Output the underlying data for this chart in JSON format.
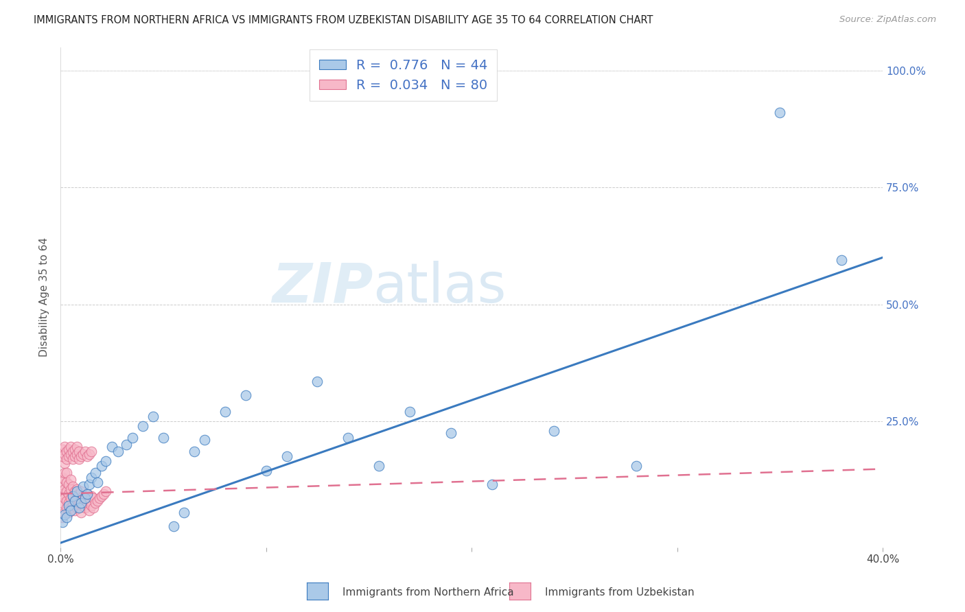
{
  "title": "IMMIGRANTS FROM NORTHERN AFRICA VS IMMIGRANTS FROM UZBEKISTAN DISABILITY AGE 35 TO 64 CORRELATION CHART",
  "source": "Source: ZipAtlas.com",
  "ylabel": "Disability Age 35 to 64",
  "xlim": [
    0.0,
    0.4
  ],
  "ylim": [
    -0.02,
    1.05
  ],
  "blue_R": 0.776,
  "blue_N": 44,
  "pink_R": 0.034,
  "pink_N": 80,
  "blue_color": "#aac9e8",
  "pink_color": "#f7b8c8",
  "blue_line_color": "#3a7abf",
  "pink_line_color": "#e07090",
  "watermark_zip": "ZIP",
  "watermark_atlas": "atlas",
  "legend_label_blue": "Immigrants from Northern Africa",
  "legend_label_pink": "Immigrants from Uzbekistan",
  "blue_trend_x0": 0.0,
  "blue_trend_y0": -0.01,
  "blue_trend_x1": 0.4,
  "blue_trend_y1": 0.6,
  "pink_trend_x0": 0.0,
  "pink_trend_y0": 0.095,
  "pink_trend_x1": 0.4,
  "pink_trend_y1": 0.148,
  "blue_points_x": [
    0.001,
    0.002,
    0.003,
    0.004,
    0.005,
    0.006,
    0.007,
    0.008,
    0.009,
    0.01,
    0.011,
    0.012,
    0.013,
    0.014,
    0.015,
    0.017,
    0.018,
    0.02,
    0.022,
    0.025,
    0.028,
    0.032,
    0.035,
    0.04,
    0.045,
    0.05,
    0.055,
    0.06,
    0.065,
    0.07,
    0.08,
    0.09,
    0.1,
    0.11,
    0.125,
    0.14,
    0.155,
    0.17,
    0.19,
    0.21,
    0.24,
    0.28,
    0.35,
    0.38
  ],
  "blue_points_y": [
    0.035,
    0.05,
    0.045,
    0.07,
    0.06,
    0.09,
    0.08,
    0.1,
    0.065,
    0.075,
    0.11,
    0.085,
    0.095,
    0.115,
    0.13,
    0.14,
    0.12,
    0.155,
    0.165,
    0.195,
    0.185,
    0.2,
    0.215,
    0.24,
    0.26,
    0.215,
    0.025,
    0.055,
    0.185,
    0.21,
    0.27,
    0.305,
    0.145,
    0.175,
    0.335,
    0.215,
    0.155,
    0.27,
    0.225,
    0.115,
    0.23,
    0.155,
    0.91,
    0.595
  ],
  "pink_points_x": [
    0.001,
    0.001,
    0.001,
    0.001,
    0.001,
    0.002,
    0.002,
    0.002,
    0.002,
    0.002,
    0.002,
    0.003,
    0.003,
    0.003,
    0.003,
    0.003,
    0.004,
    0.004,
    0.004,
    0.004,
    0.005,
    0.005,
    0.005,
    0.005,
    0.006,
    0.006,
    0.006,
    0.007,
    0.007,
    0.007,
    0.008,
    0.008,
    0.008,
    0.009,
    0.009,
    0.01,
    0.01,
    0.01,
    0.011,
    0.011,
    0.012,
    0.012,
    0.013,
    0.013,
    0.014,
    0.014,
    0.015,
    0.015,
    0.016,
    0.016,
    0.017,
    0.018,
    0.019,
    0.02,
    0.021,
    0.022,
    0.001,
    0.001,
    0.002,
    0.002,
    0.003,
    0.003,
    0.004,
    0.004,
    0.005,
    0.005,
    0.006,
    0.006,
    0.007,
    0.007,
    0.008,
    0.008,
    0.009,
    0.009,
    0.01,
    0.011,
    0.012,
    0.013,
    0.014,
    0.015
  ],
  "pink_points_y": [
    0.045,
    0.075,
    0.095,
    0.115,
    0.13,
    0.055,
    0.085,
    0.105,
    0.125,
    0.14,
    0.16,
    0.065,
    0.08,
    0.1,
    0.12,
    0.14,
    0.055,
    0.075,
    0.095,
    0.115,
    0.065,
    0.085,
    0.105,
    0.125,
    0.07,
    0.09,
    0.11,
    0.06,
    0.08,
    0.1,
    0.065,
    0.085,
    0.105,
    0.075,
    0.095,
    0.055,
    0.08,
    0.1,
    0.07,
    0.09,
    0.065,
    0.085,
    0.075,
    0.095,
    0.06,
    0.08,
    0.07,
    0.09,
    0.065,
    0.085,
    0.075,
    0.08,
    0.085,
    0.09,
    0.095,
    0.1,
    0.175,
    0.19,
    0.18,
    0.195,
    0.17,
    0.185,
    0.175,
    0.19,
    0.18,
    0.195,
    0.17,
    0.185,
    0.175,
    0.19,
    0.18,
    0.195,
    0.17,
    0.185,
    0.175,
    0.18,
    0.185,
    0.175,
    0.18,
    0.185
  ]
}
